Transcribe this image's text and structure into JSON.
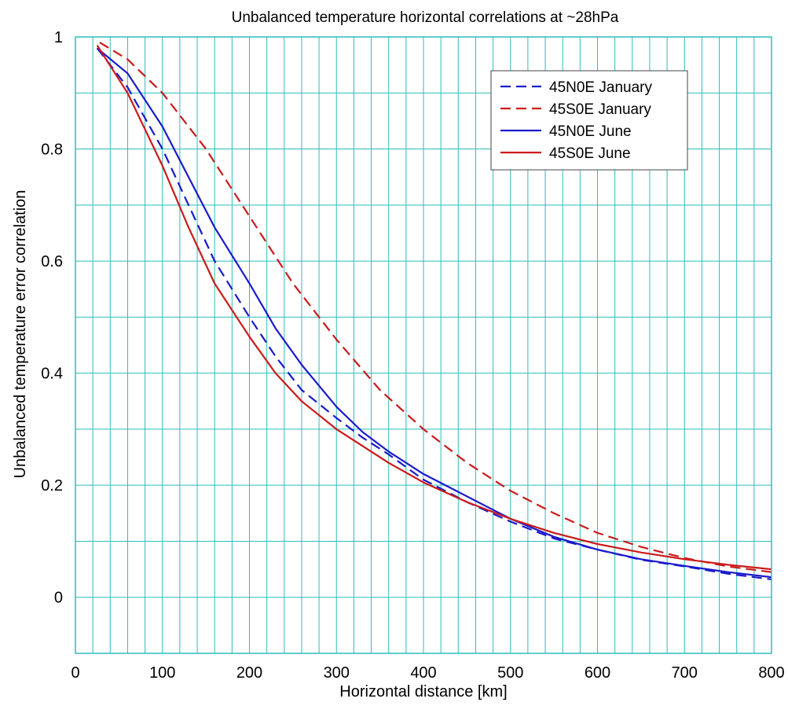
{
  "chart_data": {
    "type": "line",
    "title": "Unbalanced temperature horizontal correlations at ~28hPa",
    "xlabel": "Horizontal distance [km]",
    "ylabel": "Unbalanced temperature error correlation",
    "xlim": [
      0,
      800
    ],
    "ylim": [
      -0.1,
      1.0
    ],
    "x_ticks": [
      0,
      100,
      200,
      300,
      400,
      500,
      600,
      700,
      800
    ],
    "y_ticks": [
      0,
      0.2,
      0.4,
      0.6,
      0.8,
      1
    ],
    "x_tick_labels": [
      "0",
      "100",
      "200",
      "300",
      "400",
      "500",
      "600",
      "700",
      "800"
    ],
    "y_tick_labels": [
      "0",
      "0.2",
      "0.4",
      "0.6",
      "0.8",
      "1"
    ],
    "grid": true,
    "legend_position": "top-right",
    "series": [
      {
        "name": "45N0E January",
        "color": "#1a1acc",
        "dash": "dashed",
        "x": [
          25,
          60,
          100,
          130,
          160,
          200,
          230,
          260,
          300,
          330,
          360,
          400,
          450,
          500,
          550,
          600,
          650,
          700,
          750,
          800
        ],
        "y": [
          0.98,
          0.91,
          0.8,
          0.7,
          0.6,
          0.5,
          0.43,
          0.37,
          0.32,
          0.285,
          0.255,
          0.21,
          0.17,
          0.135,
          0.105,
          0.085,
          0.067,
          0.055,
          0.042,
          0.032
        ]
      },
      {
        "name": "45S0E January",
        "color": "#cc1a1a",
        "dash": "dashed",
        "x": [
          28,
          60,
          100,
          150,
          200,
          250,
          300,
          350,
          400,
          450,
          500,
          550,
          600,
          650,
          700,
          750,
          800
        ],
        "y": [
          0.99,
          0.96,
          0.9,
          0.8,
          0.68,
          0.56,
          0.46,
          0.37,
          0.3,
          0.24,
          0.19,
          0.15,
          0.115,
          0.09,
          0.07,
          0.055,
          0.045
        ]
      },
      {
        "name": "45N0E June",
        "color": "#1a1acc",
        "dash": "solid",
        "x": [
          25,
          60,
          100,
          130,
          160,
          200,
          230,
          260,
          300,
          330,
          360,
          400,
          450,
          500,
          550,
          600,
          650,
          700,
          750,
          800
        ],
        "y": [
          0.98,
          0.935,
          0.84,
          0.75,
          0.66,
          0.56,
          0.48,
          0.415,
          0.34,
          0.295,
          0.26,
          0.22,
          0.18,
          0.14,
          0.108,
          0.085,
          0.068,
          0.056,
          0.045,
          0.036
        ]
      },
      {
        "name": "45S0E June",
        "color": "#cc1a1a",
        "dash": "solid",
        "x": [
          25,
          60,
          100,
          130,
          160,
          200,
          230,
          260,
          300,
          330,
          360,
          400,
          450,
          500,
          550,
          600,
          650,
          700,
          750,
          800
        ],
        "y": [
          0.985,
          0.9,
          0.77,
          0.66,
          0.56,
          0.465,
          0.4,
          0.35,
          0.3,
          0.27,
          0.24,
          0.205,
          0.17,
          0.14,
          0.115,
          0.095,
          0.08,
          0.068,
          0.058,
          0.05
        ]
      }
    ]
  }
}
